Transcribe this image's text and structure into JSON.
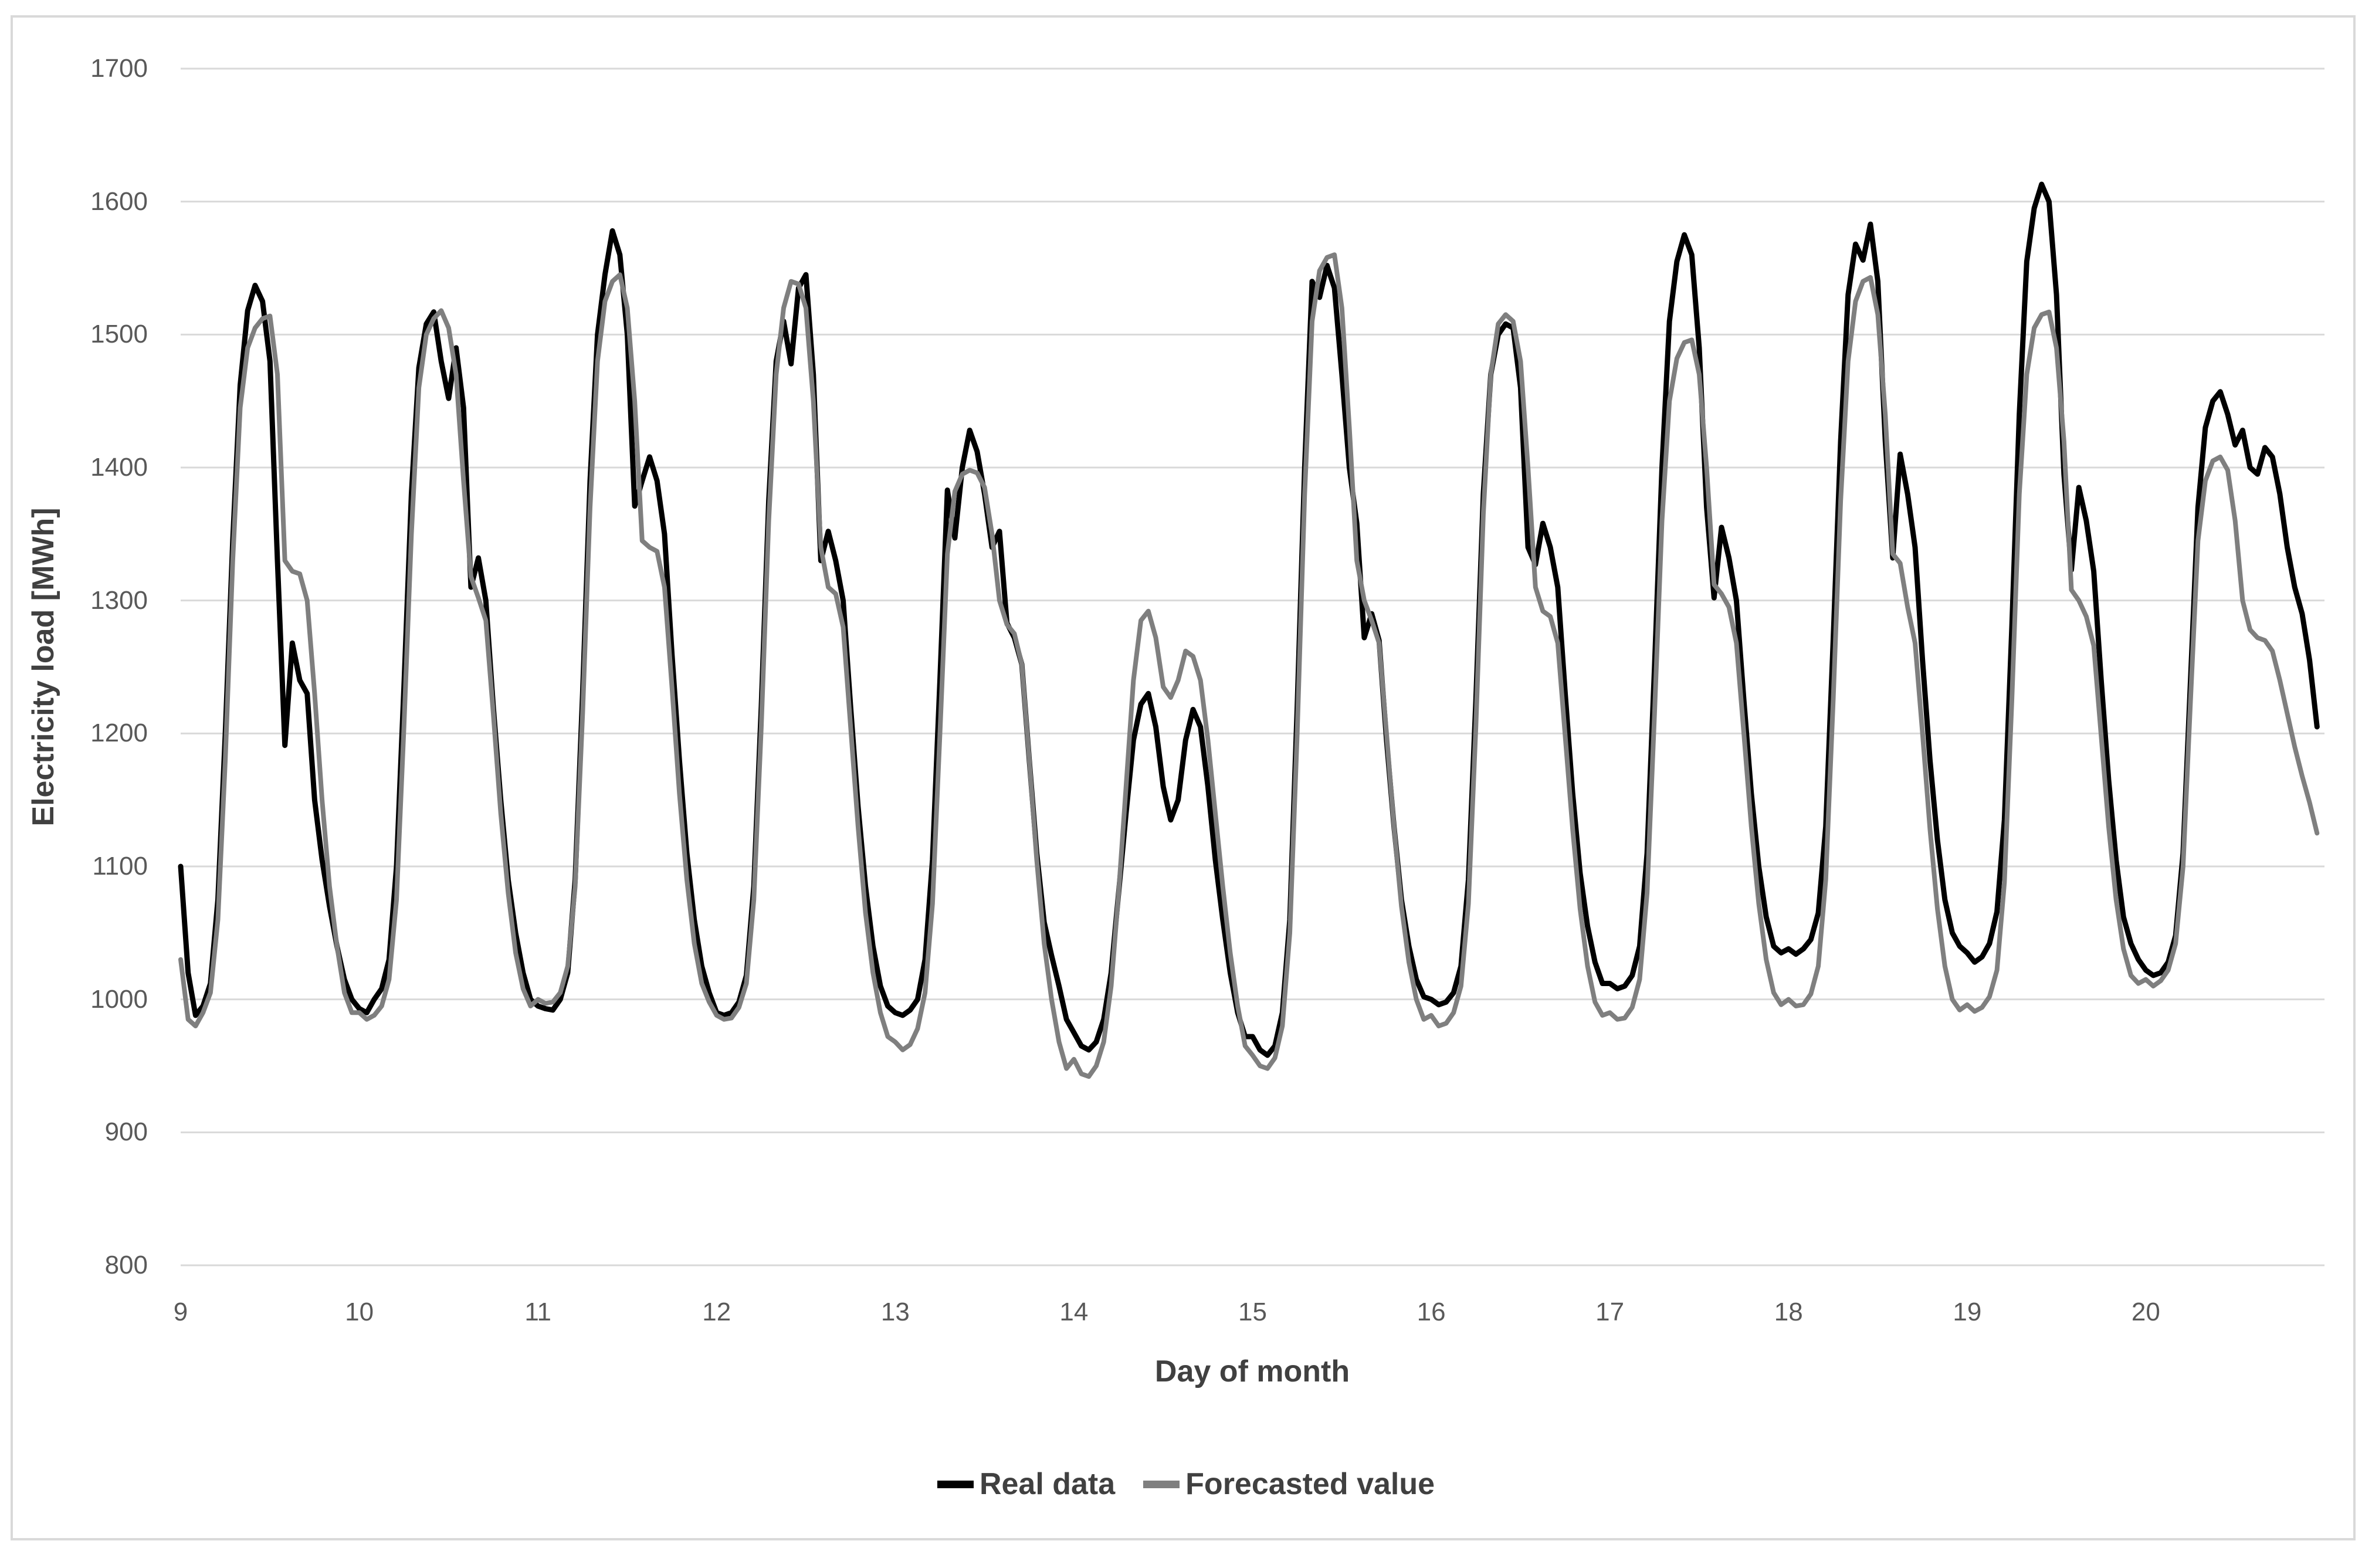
{
  "figure": {
    "background": "#ffffff",
    "frame_border_color": "#d9d9d9"
  },
  "chart_data": {
    "type": "line",
    "title": "",
    "xlabel": "Day of month",
    "ylabel": "Electricity load [MWh]",
    "ylim": [
      800,
      1700
    ],
    "y_tick_step": 100,
    "y_tick_labels": [
      "800",
      "900",
      "1000",
      "1100",
      "1200",
      "1300",
      "1400",
      "1500",
      "1600",
      "1700"
    ],
    "x_tick_labels": [
      "9",
      "10",
      "11",
      "12",
      "13",
      "14",
      "15",
      "16",
      "17",
      "18",
      "19",
      "20"
    ],
    "xlim_days": [
      9,
      21
    ],
    "points_per_day": 24,
    "x_start_day": 9,
    "grid": "horizontal",
    "gridline_color": "#d9d9d9",
    "tick_label_color": "#595959",
    "axis_title_color": "#404040",
    "legend_position": "bottom-center",
    "series": [
      {
        "name": "Real data",
        "color": "#000000",
        "stroke_width": 9,
        "values": [
          1100,
          1020,
          988,
          995,
          1012,
          1075,
          1200,
          1345,
          1462,
          1518,
          1537,
          1525,
          1480,
          1330,
          1191,
          1268,
          1240,
          1230,
          1150,
          1105,
          1070,
          1040,
          1015,
          1000,
          993,
          990,
          1000,
          1008,
          1030,
          1100,
          1235,
          1380,
          1475,
          1508,
          1517,
          1480,
          1452,
          1490,
          1445,
          1310,
          1332,
          1300,
          1220,
          1150,
          1090,
          1050,
          1020,
          1000,
          995,
          993,
          992,
          1000,
          1020,
          1090,
          1230,
          1390,
          1500,
          1545,
          1578,
          1560,
          1500,
          1371,
          1390,
          1408,
          1390,
          1350,
          1260,
          1180,
          1110,
          1060,
          1025,
          1005,
          990,
          988,
          990,
          998,
          1018,
          1085,
          1220,
          1375,
          1480,
          1510,
          1478,
          1535,
          1545,
          1470,
          1330,
          1352,
          1330,
          1300,
          1220,
          1145,
          1085,
          1040,
          1010,
          995,
          990,
          988,
          992,
          1000,
          1030,
          1105,
          1240,
          1383,
          1347,
          1400,
          1428,
          1412,
          1380,
          1340,
          1352,
          1283,
          1272,
          1252,
          1180,
          1110,
          1058,
          1033,
          1010,
          985,
          975,
          965,
          962,
          968,
          985,
          1020,
          1080,
          1140,
          1195,
          1222,
          1230,
          1205,
          1160,
          1135,
          1150,
          1195,
          1218,
          1205,
          1160,
          1105,
          1060,
          1020,
          990,
          972,
          972,
          962,
          958,
          965,
          990,
          1060,
          1220,
          1400,
          1540,
          1528,
          1552,
          1535,
          1470,
          1400,
          1358,
          1272,
          1290,
          1270,
          1195,
          1130,
          1075,
          1040,
          1015,
          1002,
          1000,
          996,
          998,
          1005,
          1025,
          1090,
          1225,
          1380,
          1470,
          1500,
          1508,
          1505,
          1460,
          1340,
          1327,
          1358,
          1340,
          1310,
          1230,
          1155,
          1095,
          1055,
          1028,
          1012,
          1012,
          1008,
          1010,
          1018,
          1040,
          1110,
          1250,
          1400,
          1510,
          1555,
          1575,
          1560,
          1490,
          1370,
          1302,
          1355,
          1332,
          1300,
          1225,
          1155,
          1100,
          1062,
          1040,
          1035,
          1038,
          1034,
          1038,
          1045,
          1065,
          1130,
          1270,
          1420,
          1530,
          1568,
          1556,
          1583,
          1540,
          1420,
          1332,
          1410,
          1380,
          1340,
          1255,
          1180,
          1120,
          1075,
          1050,
          1040,
          1035,
          1028,
          1032,
          1042,
          1066,
          1135,
          1280,
          1440,
          1555,
          1595,
          1613,
          1600,
          1530,
          1395,
          1323,
          1385,
          1360,
          1322,
          1240,
          1165,
          1105,
          1062,
          1042,
          1030,
          1022,
          1018,
          1020,
          1028,
          1048,
          1110,
          1240,
          1370,
          1430,
          1450,
          1457,
          1440,
          1417,
          1428,
          1400,
          1395,
          1415,
          1408,
          1380,
          1340,
          1310,
          1290,
          1255,
          1205
        ]
      },
      {
        "name": "Forecasted value",
        "color": "#7f7f7f",
        "stroke_width": 8,
        "values": [
          1030,
          985,
          980,
          990,
          1005,
          1060,
          1180,
          1330,
          1445,
          1490,
          1505,
          1512,
          1514,
          1470,
          1330,
          1322,
          1320,
          1300,
          1230,
          1150,
          1085,
          1040,
          1005,
          990,
          990,
          985,
          988,
          995,
          1015,
          1075,
          1205,
          1350,
          1460,
          1500,
          1512,
          1518,
          1505,
          1470,
          1390,
          1318,
          1302,
          1285,
          1215,
          1140,
          1080,
          1035,
          1008,
          995,
          1000,
          997,
          998,
          1005,
          1025,
          1085,
          1215,
          1370,
          1480,
          1525,
          1540,
          1545,
          1520,
          1450,
          1345,
          1340,
          1337,
          1310,
          1235,
          1155,
          1090,
          1042,
          1012,
          998,
          988,
          985,
          986,
          994,
          1012,
          1075,
          1205,
          1360,
          1470,
          1520,
          1540,
          1538,
          1520,
          1450,
          1340,
          1310,
          1305,
          1280,
          1205,
          1130,
          1065,
          1020,
          990,
          972,
          968,
          962,
          966,
          978,
          1005,
          1072,
          1200,
          1335,
          1382,
          1395,
          1398,
          1396,
          1385,
          1350,
          1300,
          1282,
          1275,
          1252,
          1180,
          1105,
          1042,
          1000,
          968,
          948,
          955,
          944,
          942,
          950,
          968,
          1010,
          1080,
          1160,
          1240,
          1285,
          1292,
          1272,
          1235,
          1227,
          1240,
          1262,
          1258,
          1240,
          1195,
          1140,
          1085,
          1035,
          995,
          965,
          958,
          950,
          948,
          956,
          980,
          1050,
          1200,
          1380,
          1510,
          1548,
          1558,
          1560,
          1520,
          1430,
          1330,
          1300,
          1285,
          1268,
          1200,
          1130,
          1070,
          1028,
          1000,
          985,
          988,
          980,
          982,
          990,
          1010,
          1072,
          1205,
          1365,
          1470,
          1508,
          1515,
          1510,
          1480,
          1400,
          1310,
          1292,
          1288,
          1268,
          1198,
          1128,
          1068,
          1025,
          998,
          988,
          990,
          985,
          986,
          994,
          1015,
          1080,
          1215,
          1360,
          1450,
          1482,
          1494,
          1496,
          1470,
          1400,
          1312,
          1305,
          1295,
          1268,
          1200,
          1130,
          1072,
          1030,
          1005,
          996,
          1000,
          995,
          996,
          1004,
          1025,
          1090,
          1225,
          1375,
          1480,
          1525,
          1540,
          1543,
          1515,
          1440,
          1335,
          1328,
          1295,
          1268,
          1200,
          1128,
          1068,
          1025,
          1000,
          992,
          996,
          991,
          994,
          1002,
          1022,
          1088,
          1225,
          1380,
          1470,
          1505,
          1515,
          1517,
          1490,
          1420,
          1308,
          1300,
          1288,
          1266,
          1198,
          1130,
          1075,
          1038,
          1018,
          1012,
          1015,
          1010,
          1014,
          1022,
          1042,
          1100,
          1225,
          1345,
          1390,
          1405,
          1408,
          1398,
          1360,
          1300,
          1278,
          1272,
          1270,
          1262,
          1240,
          1215,
          1190,
          1168,
          1148,
          1125
        ]
      }
    ]
  }
}
